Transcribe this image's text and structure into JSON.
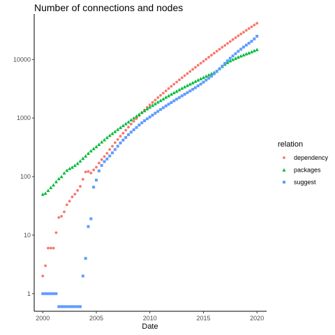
{
  "chart_data": {
    "type": "scatter",
    "title": "Number of connections and nodes",
    "xlabel": "Date",
    "ylabel": "",
    "x_scale": "linear",
    "y_scale": "log10",
    "xlim": [
      1999.2,
      2020.9
    ],
    "ylim": [
      0.5,
      60000
    ],
    "x_ticks": [
      2000,
      2005,
      2010,
      2015,
      2020
    ],
    "x_tick_labels": [
      "2000",
      "2005",
      "2010",
      "2015",
      "2020"
    ],
    "y_ticks": [
      1,
      10,
      100,
      1000,
      10000
    ],
    "y_tick_labels": [
      "1",
      "10",
      "100",
      "1000",
      "10000"
    ],
    "grid": false,
    "legend": {
      "title": "relation",
      "position": "right",
      "entries": [
        "dependency",
        "packages",
        "suggest"
      ]
    },
    "series": [
      {
        "name": "dependency",
        "color": "#F8766D",
        "shape": "circle",
        "x": [
          2000.0,
          2000.25,
          2000.5,
          2000.75,
          2001.0,
          2001.25,
          2001.5,
          2001.75,
          2002.0,
          2002.25,
          2002.5,
          2002.75,
          2003.0,
          2003.25,
          2003.5,
          2003.75,
          2004.0,
          2004.25,
          2004.5,
          2004.75,
          2005.0,
          2005.25,
          2005.5,
          2005.75,
          2006.0,
          2006.25,
          2006.5,
          2006.75,
          2007.0,
          2007.25,
          2007.5,
          2007.75,
          2008.0,
          2008.25,
          2008.5,
          2008.75,
          2009.0,
          2009.25,
          2009.5,
          2009.75,
          2010.0,
          2010.25,
          2010.5,
          2010.75,
          2011.0,
          2011.25,
          2011.5,
          2011.75,
          2012.0,
          2012.25,
          2012.5,
          2012.75,
          2013.0,
          2013.25,
          2013.5,
          2013.75,
          2014.0,
          2014.25,
          2014.5,
          2014.75,
          2015.0,
          2015.25,
          2015.5,
          2015.75,
          2016.0,
          2016.25,
          2016.5,
          2016.75,
          2017.0,
          2017.25,
          2017.5,
          2017.75,
          2018.0,
          2018.25,
          2018.5,
          2018.75,
          2019.0,
          2019.25,
          2019.5,
          2019.75,
          2020.0
        ],
        "y": [
          2,
          3,
          6,
          6,
          6,
          11,
          20,
          21,
          25,
          33,
          38,
          45,
          50,
          58,
          68,
          90,
          120,
          122,
          115,
          130,
          145,
          170,
          195,
          220,
          250,
          290,
          330,
          380,
          430,
          490,
          550,
          620,
          700,
          790,
          880,
          980,
          1100,
          1230,
          1370,
          1520,
          1680,
          1850,
          2030,
          2230,
          2440,
          2670,
          2920,
          3190,
          3480,
          3790,
          4130,
          4490,
          4880,
          5300,
          5760,
          6250,
          6780,
          7350,
          7970,
          8640,
          9350,
          10100,
          10950,
          11850,
          12800,
          13850,
          14950,
          16150,
          17400,
          18800,
          20300,
          21900,
          23600,
          25400,
          27300,
          29300,
          31500,
          33800,
          36200,
          38800,
          41500
        ]
      },
      {
        "name": "packages",
        "color": "#00BA38",
        "shape": "triangle",
        "x": [
          2000.0,
          2000.25,
          2000.5,
          2000.75,
          2001.0,
          2001.25,
          2001.5,
          2001.75,
          2002.0,
          2002.25,
          2002.5,
          2002.75,
          2003.0,
          2003.25,
          2003.5,
          2003.75,
          2004.0,
          2004.25,
          2004.5,
          2004.75,
          2005.0,
          2005.25,
          2005.5,
          2005.75,
          2006.0,
          2006.25,
          2006.5,
          2006.75,
          2007.0,
          2007.25,
          2007.5,
          2007.75,
          2008.0,
          2008.25,
          2008.5,
          2008.75,
          2009.0,
          2009.25,
          2009.5,
          2009.75,
          2010.0,
          2010.25,
          2010.5,
          2010.75,
          2011.0,
          2011.25,
          2011.5,
          2011.75,
          2012.0,
          2012.25,
          2012.5,
          2012.75,
          2013.0,
          2013.25,
          2013.5,
          2013.75,
          2014.0,
          2014.25,
          2014.5,
          2014.75,
          2015.0,
          2015.25,
          2015.5,
          2015.75,
          2016.0,
          2016.25,
          2016.5,
          2016.75,
          2017.0,
          2017.25,
          2017.5,
          2017.75,
          2018.0,
          2018.25,
          2018.5,
          2018.75,
          2019.0,
          2019.25,
          2019.5,
          2019.75,
          2020.0
        ],
        "y": [
          50,
          52,
          58,
          65,
          72,
          82,
          92,
          100,
          115,
          128,
          137,
          145,
          155,
          168,
          185,
          205,
          225,
          250,
          275,
          300,
          325,
          355,
          390,
          425,
          465,
          505,
          545,
          590,
          640,
          690,
          745,
          800,
          860,
          930,
          1000,
          1080,
          1160,
          1250,
          1340,
          1440,
          1540,
          1650,
          1760,
          1880,
          2000,
          2130,
          2270,
          2410,
          2560,
          2720,
          2880,
          3050,
          3230,
          3420,
          3610,
          3810,
          4020,
          4240,
          4470,
          4700,
          4950,
          5200,
          5460,
          5730,
          6010,
          6300,
          7000,
          7600,
          8300,
          8900,
          9500,
          10000,
          10500,
          11000,
          11500,
          12000,
          12500,
          13000,
          13600,
          14200,
          14800
        ]
      },
      {
        "name": "suggest",
        "color": "#619CFF",
        "shape": "square",
        "x": [
          2000.0,
          2000.25,
          2000.5,
          2000.75,
          2001.0,
          2001.25,
          2001.5,
          2001.75,
          2002.0,
          2002.25,
          2002.5,
          2002.75,
          2003.0,
          2003.25,
          2003.5,
          2003.75,
          2004.0,
          2004.25,
          2004.5,
          2004.75,
          2005.0,
          2005.25,
          2005.5,
          2005.75,
          2006.0,
          2006.25,
          2006.5,
          2006.75,
          2007.0,
          2007.25,
          2007.5,
          2007.75,
          2008.0,
          2008.25,
          2008.5,
          2008.75,
          2009.0,
          2009.25,
          2009.5,
          2009.75,
          2010.0,
          2010.25,
          2010.5,
          2010.75,
          2011.0,
          2011.25,
          2011.5,
          2011.75,
          2012.0,
          2012.25,
          2012.5,
          2012.75,
          2013.0,
          2013.25,
          2013.5,
          2013.75,
          2014.0,
          2014.25,
          2014.5,
          2014.75,
          2015.0,
          2015.25,
          2015.5,
          2015.75,
          2016.0,
          2016.25,
          2016.5,
          2016.75,
          2017.0,
          2017.25,
          2017.5,
          2017.75,
          2018.0,
          2018.25,
          2018.5,
          2018.75,
          2019.0,
          2019.25,
          2019.5,
          2019.75,
          2020.0
        ],
        "y": [
          1,
          1,
          1,
          1,
          1,
          1,
          0.6,
          0.6,
          0.6,
          0.6,
          0.6,
          0.6,
          0.6,
          0.6,
          0.6,
          2,
          4,
          14,
          19,
          66,
          87,
          125,
          155,
          180,
          200,
          225,
          255,
          290,
          330,
          375,
          420,
          465,
          520,
          575,
          630,
          690,
          760,
          830,
          900,
          970,
          1040,
          1120,
          1210,
          1300,
          1400,
          1500,
          1610,
          1720,
          1840,
          1970,
          2100,
          2240,
          2390,
          2550,
          2720,
          2900,
          3100,
          3300,
          3550,
          3800,
          4100,
          4450,
          4800,
          5200,
          5700,
          6300,
          6900,
          7700,
          8600,
          9500,
          10500,
          11500,
          12600,
          13800,
          15000,
          16300,
          17600,
          19000,
          20500,
          22500,
          25000
        ]
      }
    ]
  }
}
